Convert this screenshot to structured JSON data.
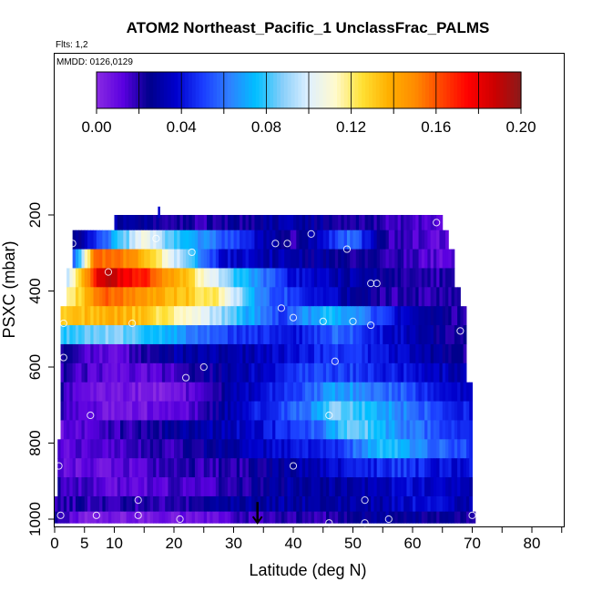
{
  "chart_data": {
    "type": "heatmap",
    "title": "ATOM2 Northeast_Pacific_1 UnclassFrac_PALMS",
    "flights_label": "Flts: 1,2",
    "dates_label": "MMDD: 0126,0129",
    "xlabel": "Latitude (deg N)",
    "ylabel": "PSXC (mbar)",
    "xlim": [
      0,
      85
    ],
    "ylim": [
      1000,
      100
    ],
    "x_ticks": [
      0,
      5,
      10,
      20,
      30,
      40,
      50,
      60,
      70,
      80
    ],
    "x_minor_ticks": [
      15,
      25,
      35,
      45,
      55,
      65,
      75,
      85
    ],
    "y_ticks": [
      200,
      400,
      600,
      800,
      1000
    ],
    "colorbar": {
      "min": 0.0,
      "max": 0.2,
      "tick_labels": [
        "0.00",
        "0.04",
        "0.08",
        "0.12",
        "0.16",
        "0.20"
      ],
      "tick_values": [
        0.0,
        0.04,
        0.08,
        0.12,
        0.16,
        0.2
      ],
      "colors": [
        "#8a2be2",
        "#5a00e0",
        "#00008b",
        "#0000cd",
        "#1a3cff",
        "#2f7fff",
        "#00bfff",
        "#87cefa",
        "#e0f0ff",
        "#fffacd",
        "#ffe135",
        "#ffb000",
        "#ff8c00",
        "#ff4500",
        "#ff0000",
        "#cc0000",
        "#8b1a1a"
      ]
    },
    "pressure_levels": [
      220,
      270,
      320,
      370,
      420,
      470,
      520,
      570,
      620,
      670,
      720,
      770,
      820,
      870,
      920,
      970,
      1000
    ],
    "layers": [
      {
        "p_top": 200,
        "p_bot": 240,
        "lat_start": 10,
        "lat_end": 65,
        "stops": [
          [
            10,
            0.03
          ],
          [
            25,
            0.02
          ],
          [
            40,
            0.03
          ],
          [
            55,
            0.02
          ],
          [
            65,
            0.01
          ]
        ]
      },
      {
        "p_top": 240,
        "p_bot": 290,
        "lat_start": 3,
        "lat_end": 66,
        "stops": [
          [
            3,
            0.02
          ],
          [
            10,
            0.07
          ],
          [
            15,
            0.11
          ],
          [
            20,
            0.08
          ],
          [
            30,
            0.05
          ],
          [
            40,
            0.02
          ],
          [
            50,
            0.06
          ],
          [
            55,
            0.02
          ],
          [
            66,
            0.01
          ]
        ]
      },
      {
        "p_top": 290,
        "p_bot": 340,
        "lat_start": 3,
        "lat_end": 67,
        "stops": [
          [
            3,
            0.05
          ],
          [
            7,
            0.16
          ],
          [
            13,
            0.15
          ],
          [
            20,
            0.1
          ],
          [
            28,
            0.04
          ],
          [
            40,
            0.03
          ],
          [
            55,
            0.02
          ],
          [
            67,
            0.01
          ]
        ]
      },
      {
        "p_top": 340,
        "p_bot": 390,
        "lat_start": 2,
        "lat_end": 67,
        "stops": [
          [
            2,
            0.09
          ],
          [
            8,
            0.19
          ],
          [
            15,
            0.17
          ],
          [
            22,
            0.13
          ],
          [
            30,
            0.08
          ],
          [
            40,
            0.04
          ],
          [
            50,
            0.03
          ],
          [
            60,
            0.02
          ],
          [
            67,
            0.02
          ]
        ]
      },
      {
        "p_top": 390,
        "p_bot": 440,
        "lat_start": 2,
        "lat_end": 68,
        "stops": [
          [
            2,
            0.11
          ],
          [
            8,
            0.16
          ],
          [
            18,
            0.14
          ],
          [
            27,
            0.12
          ],
          [
            35,
            0.06
          ],
          [
            45,
            0.04
          ],
          [
            55,
            0.02
          ],
          [
            68,
            0.02
          ]
        ]
      },
      {
        "p_top": 440,
        "p_bot": 490,
        "lat_start": 1,
        "lat_end": 69,
        "stops": [
          [
            1,
            0.13
          ],
          [
            10,
            0.14
          ],
          [
            20,
            0.12
          ],
          [
            28,
            0.09
          ],
          [
            38,
            0.05
          ],
          [
            46,
            0.08
          ],
          [
            52,
            0.06
          ],
          [
            60,
            0.03
          ],
          [
            69,
            0.02
          ]
        ]
      },
      {
        "p_top": 490,
        "p_bot": 540,
        "lat_start": 1,
        "lat_end": 69,
        "stops": [
          [
            1,
            0.08
          ],
          [
            10,
            0.09
          ],
          [
            20,
            0.07
          ],
          [
            30,
            0.05
          ],
          [
            40,
            0.04
          ],
          [
            48,
            0.06
          ],
          [
            55,
            0.04
          ],
          [
            69,
            0.02
          ]
        ]
      },
      {
        "p_top": 540,
        "p_bot": 590,
        "lat_start": 1,
        "lat_end": 69,
        "stops": [
          [
            1,
            0.02
          ],
          [
            10,
            0.01
          ],
          [
            20,
            0.03
          ],
          [
            30,
            0.03
          ],
          [
            40,
            0.04
          ],
          [
            48,
            0.05
          ],
          [
            56,
            0.04
          ],
          [
            69,
            0.02
          ]
        ]
      },
      {
        "p_top": 590,
        "p_bot": 640,
        "lat_start": 1,
        "lat_end": 69,
        "stops": [
          [
            1,
            0.02
          ],
          [
            10,
            0.01
          ],
          [
            20,
            0.015
          ],
          [
            30,
            0.03
          ],
          [
            42,
            0.05
          ],
          [
            50,
            0.05
          ],
          [
            60,
            0.04
          ],
          [
            69,
            0.03
          ]
        ]
      },
      {
        "p_top": 640,
        "p_bot": 690,
        "lat_start": 1,
        "lat_end": 70,
        "stops": [
          [
            1,
            0.02
          ],
          [
            8,
            0.005
          ],
          [
            20,
            0.005
          ],
          [
            30,
            0.03
          ],
          [
            40,
            0.05
          ],
          [
            48,
            0.07
          ],
          [
            56,
            0.06
          ],
          [
            70,
            0.03
          ]
        ]
      },
      {
        "p_top": 690,
        "p_bot": 740,
        "lat_start": 1,
        "lat_end": 70,
        "stops": [
          [
            1,
            0.02
          ],
          [
            10,
            0.005
          ],
          [
            22,
            0.01
          ],
          [
            32,
            0.04
          ],
          [
            42,
            0.06
          ],
          [
            47,
            0.09
          ],
          [
            55,
            0.07
          ],
          [
            70,
            0.04
          ]
        ]
      },
      {
        "p_top": 740,
        "p_bot": 790,
        "lat_start": 1,
        "lat_end": 70,
        "stops": [
          [
            1,
            0.01
          ],
          [
            12,
            0.02
          ],
          [
            25,
            0.03
          ],
          [
            35,
            0.04
          ],
          [
            45,
            0.06
          ],
          [
            50,
            0.09
          ],
          [
            56,
            0.07
          ],
          [
            70,
            0.04
          ]
        ]
      },
      {
        "p_top": 790,
        "p_bot": 840,
        "lat_start": 0.5,
        "lat_end": 70,
        "stops": [
          [
            0.5,
            0.01
          ],
          [
            10,
            0.015
          ],
          [
            20,
            0.02
          ],
          [
            30,
            0.03
          ],
          [
            40,
            0.04
          ],
          [
            48,
            0.05
          ],
          [
            56,
            0.08
          ],
          [
            62,
            0.06
          ],
          [
            70,
            0.05
          ]
        ]
      },
      {
        "p_top": 840,
        "p_bot": 890,
        "lat_start": 0.5,
        "lat_end": 70,
        "stops": [
          [
            0.5,
            0.01
          ],
          [
            10,
            0.01
          ],
          [
            20,
            0.02
          ],
          [
            30,
            0.02
          ],
          [
            40,
            0.03
          ],
          [
            50,
            0.04
          ],
          [
            58,
            0.05
          ],
          [
            64,
            0.04
          ],
          [
            70,
            0.04
          ]
        ]
      },
      {
        "p_top": 890,
        "p_bot": 940,
        "lat_start": 0.5,
        "lat_end": 70,
        "stops": [
          [
            0.5,
            0.02
          ],
          [
            10,
            0.01
          ],
          [
            20,
            0.015
          ],
          [
            30,
            0.02
          ],
          [
            40,
            0.03
          ],
          [
            50,
            0.03
          ],
          [
            60,
            0.04
          ],
          [
            70,
            0.03
          ]
        ]
      },
      {
        "p_top": 940,
        "p_bot": 980,
        "lat_start": 0,
        "lat_end": 70,
        "stops": [
          [
            0,
            0.02
          ],
          [
            12,
            0.02
          ],
          [
            20,
            0.02
          ],
          [
            30,
            0.03
          ],
          [
            40,
            0.03
          ],
          [
            52,
            0.03
          ],
          [
            62,
            0.04
          ],
          [
            70,
            0.03
          ]
        ]
      },
      {
        "p_top": 980,
        "p_bot": 1010,
        "lat_start": 0,
        "lat_end": 70.5,
        "stops": [
          [
            0,
            0.02
          ],
          [
            5,
            0.005
          ],
          [
            15,
            0.005
          ],
          [
            25,
            0.01
          ],
          [
            35,
            0.02
          ],
          [
            45,
            0.02
          ],
          [
            55,
            0.03
          ],
          [
            70.5,
            0.02
          ]
        ]
      }
    ],
    "sample_points": [
      [
        64,
        220
      ],
      [
        43,
        250
      ],
      [
        3,
        275
      ],
      [
        17,
        262
      ],
      [
        23,
        298
      ],
      [
        37,
        275
      ],
      [
        39,
        275
      ],
      [
        49,
        290
      ],
      [
        9,
        350
      ],
      [
        53,
        380
      ],
      [
        54,
        380
      ],
      [
        38,
        445
      ],
      [
        1.5,
        485
      ],
      [
        13,
        485
      ],
      [
        40,
        470
      ],
      [
        45,
        480
      ],
      [
        50,
        480
      ],
      [
        53,
        490
      ],
      [
        68,
        505
      ],
      [
        1.5,
        575
      ],
      [
        25,
        600
      ],
      [
        22,
        628
      ],
      [
        47,
        585
      ],
      [
        6,
        727
      ],
      [
        46,
        727
      ],
      [
        0.7,
        860
      ],
      [
        40,
        860
      ],
      [
        14,
        950
      ],
      [
        52,
        950
      ],
      [
        1,
        990
      ],
      [
        7,
        990
      ],
      [
        14,
        990
      ],
      [
        21,
        1000
      ],
      [
        46,
        1010
      ],
      [
        52,
        1010
      ],
      [
        56,
        1000
      ],
      [
        70,
        990
      ]
    ],
    "markers": [
      {
        "lat": 17.5,
        "p_from": 178,
        "p_to": 208,
        "color": "#0000cd"
      },
      {
        "lat": 34,
        "p_from": 955,
        "p_to": 1010,
        "color": "#000000"
      }
    ]
  }
}
